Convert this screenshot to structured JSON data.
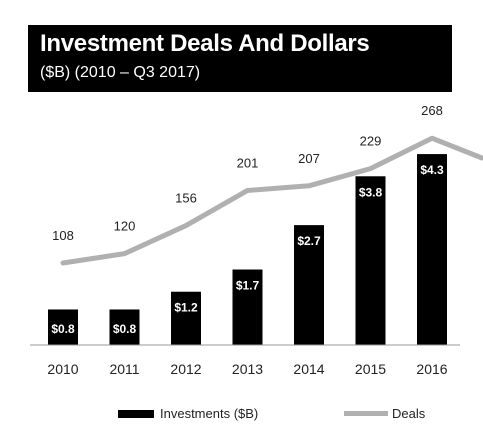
{
  "chart_data": {
    "type": "bar",
    "title": "Investment Deals And Dollars",
    "subtitle": "($B) (2010 – Q3 2017)",
    "categories": [
      "2010",
      "2011",
      "2012",
      "2013",
      "2014",
      "2015",
      "2016"
    ],
    "series": [
      {
        "name": "Investments ($B)",
        "kind": "bar",
        "values": [
          0.8,
          0.8,
          1.2,
          1.7,
          2.7,
          3.8,
          4.3
        ],
        "labels": [
          "$0.8",
          "$0.8",
          "$1.2",
          "$1.7",
          "$2.7",
          "$3.8",
          "$4.3"
        ],
        "color": "#000000"
      },
      {
        "name": "Deals",
        "kind": "line",
        "values": [
          108,
          120,
          156,
          201,
          207,
          229,
          268
        ],
        "labels": [
          "108",
          "120",
          "156",
          "201",
          "207",
          "229",
          "268"
        ],
        "color": "#b0b0b0"
      }
    ],
    "legend": {
      "position": "bottom"
    },
    "grid": false
  }
}
